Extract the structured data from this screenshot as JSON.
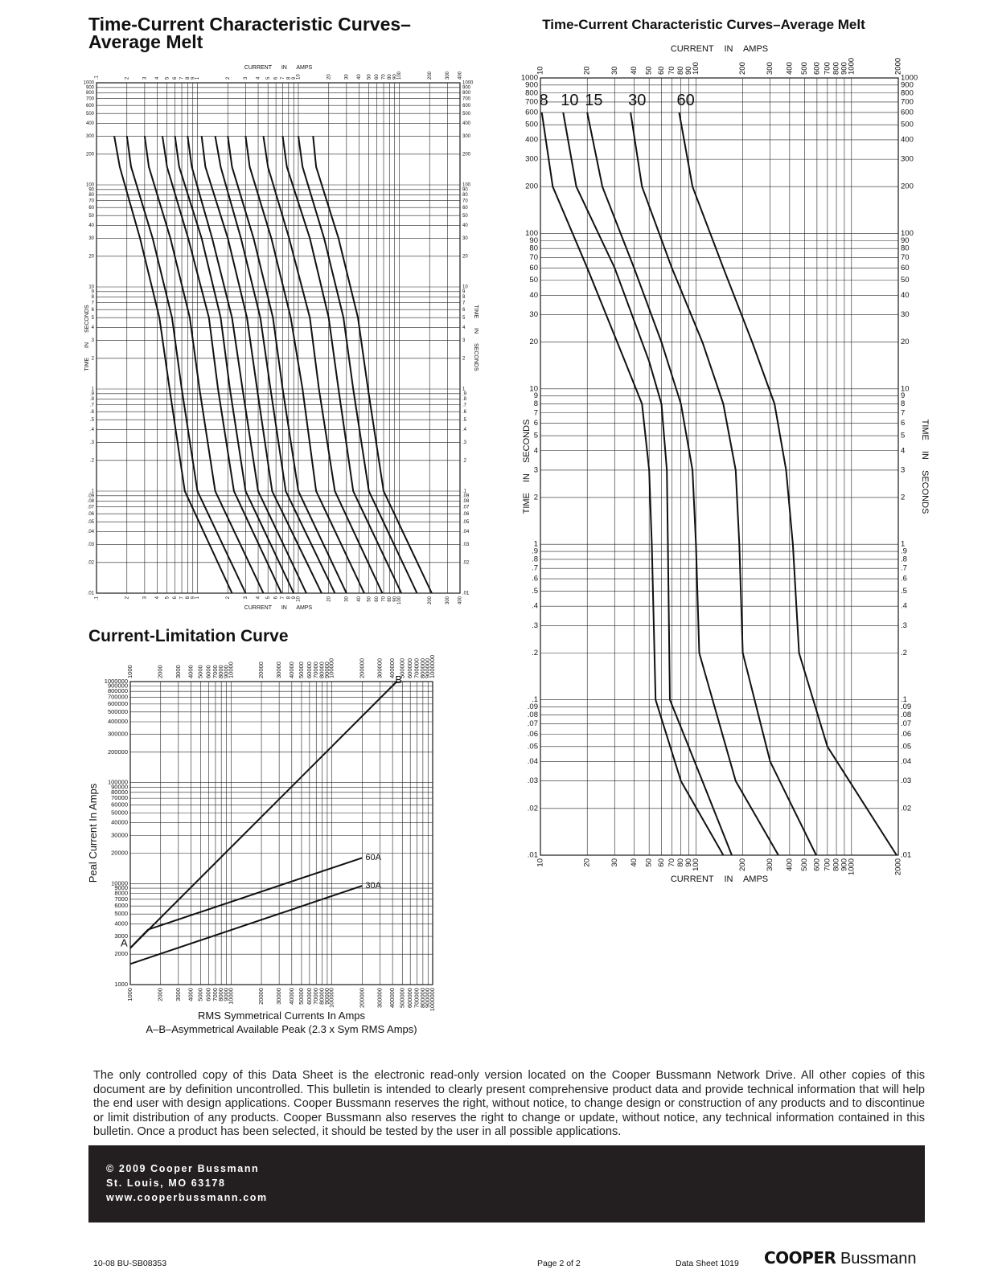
{
  "chart_data": [
    {
      "type": "line",
      "title": [
        "Time-Current Characteristic Curves–",
        "Average Melt"
      ],
      "xlabel": "CURRENT IN AMPS",
      "ylabel": "TIME IN SECONDS",
      "xscale": "log",
      "yscale": "log",
      "grid": true,
      "color": "#111111",
      "xlim": [
        0.1,
        400
      ],
      "ylim": [
        0.01,
        1000
      ],
      "xticks": [
        {
          "value": 0.1,
          "label": ".1"
        },
        {
          "value": 0.2,
          "label": "2"
        },
        {
          "value": 0.3,
          "label": "3"
        },
        {
          "value": 0.4,
          "label": "4"
        },
        {
          "value": 0.5,
          "label": "5"
        },
        {
          "value": 0.6,
          "label": "6"
        },
        {
          "value": 0.7,
          "label": "7"
        },
        {
          "value": 0.8,
          "label": "8"
        },
        {
          "value": 0.9,
          "label": "9"
        },
        1,
        2,
        3,
        4,
        5,
        6,
        7,
        8,
        9,
        10,
        20,
        30,
        40,
        50,
        60,
        70,
        80,
        90,
        100,
        200,
        300,
        400
      ],
      "yticks": [
        {
          "value": 0.01,
          "label": ".01"
        },
        {
          "value": 0.02,
          "label": ".02"
        },
        {
          "value": 0.03,
          "label": ".03"
        },
        {
          "value": 0.04,
          "label": ".04"
        },
        {
          "value": 0.05,
          "label": ".05"
        },
        {
          "value": 0.06,
          "label": ".06"
        },
        {
          "value": 0.07,
          "label": ".07"
        },
        {
          "value": 0.08,
          "label": ".08"
        },
        {
          "value": 0.09,
          "label": ".09"
        },
        {
          "value": 0.1,
          "label": ".1"
        },
        {
          "value": 0.2,
          "label": ".2"
        },
        {
          "value": 0.3,
          "label": ".3"
        },
        {
          "value": 0.4,
          "label": ".4"
        },
        {
          "value": 0.5,
          "label": ".5"
        },
        {
          "value": 0.6,
          "label": ".6"
        },
        {
          "value": 0.7,
          "label": ".7"
        },
        {
          "value": 0.8,
          "label": ".8"
        },
        {
          "value": 0.9,
          "label": ".9"
        },
        1,
        2,
        3,
        4,
        5,
        6,
        7,
        8,
        9,
        10,
        20,
        30,
        40,
        50,
        60,
        70,
        80,
        90,
        100,
        200,
        300,
        400,
        500,
        600,
        700,
        800,
        900,
        1000
      ],
      "series": [
        {
          "x": [
            0.15,
            0.17,
            0.27,
            0.42,
            0.53,
            0.75,
            2.2
          ],
          "values": [
            300,
            150,
            30,
            5,
            1,
            0.1,
            0.01
          ]
        },
        {
          "x": [
            0.2,
            0.22,
            0.36,
            0.56,
            0.7,
            1,
            3
          ],
          "values": [
            300,
            150,
            30,
            5,
            1,
            0.1,
            0.01
          ]
        },
        {
          "x": [
            0.3,
            0.33,
            0.54,
            0.84,
            1.05,
            1.5,
            4.5
          ],
          "values": [
            300,
            150,
            30,
            5,
            1,
            0.1,
            0.01
          ]
        },
        {
          "x": [
            0.45,
            0.5,
            0.81,
            1.3,
            1.6,
            2.3,
            6.8
          ],
          "values": [
            300,
            150,
            30,
            5,
            1,
            0.1,
            0.01
          ]
        },
        {
          "x": [
            0.6,
            0.66,
            1.1,
            1.7,
            2.1,
            3,
            9
          ],
          "values": [
            300,
            150,
            30,
            5,
            1,
            0.1,
            0.01
          ]
        },
        {
          "x": [
            0.8,
            0.88,
            1.4,
            2.2,
            2.8,
            4,
            12
          ],
          "values": [
            300,
            150,
            30,
            5,
            1,
            0.1,
            0.01
          ]
        },
        {
          "x": [
            1.1,
            1.2,
            2,
            3.1,
            3.9,
            5.5,
            17
          ],
          "values": [
            300,
            150,
            30,
            5,
            1,
            0.1,
            0.01
          ]
        },
        {
          "x": [
            1.5,
            1.7,
            2.7,
            4.2,
            5.3,
            7.5,
            23
          ],
          "values": [
            300,
            150,
            30,
            5,
            1,
            0.1,
            0.01
          ]
        },
        {
          "x": [
            2,
            2.2,
            3.6,
            5.6,
            7,
            10,
            30
          ],
          "values": [
            300,
            150,
            30,
            5,
            1,
            0.1,
            0.01
          ]
        },
        {
          "x": [
            3,
            3.3,
            5.4,
            8.4,
            11,
            15,
            45
          ],
          "values": [
            300,
            150,
            30,
            5,
            1,
            0.1,
            0.01
          ]
        },
        {
          "x": [
            4.5,
            5,
            8.1,
            13,
            16,
            23,
            68
          ],
          "values": [
            300,
            150,
            30,
            5,
            1,
            0.1,
            0.01
          ]
        },
        {
          "x": [
            7,
            7.7,
            13,
            20,
            25,
            35,
            105
          ],
          "values": [
            300,
            150,
            30,
            5,
            1,
            0.1,
            0.01
          ]
        },
        {
          "x": [
            10,
            11,
            18,
            28,
            35,
            50,
            150
          ],
          "values": [
            300,
            150,
            30,
            5,
            1,
            0.1,
            0.01
          ]
        },
        {
          "x": [
            14,
            15,
            25,
            39,
            49,
            70,
            210
          ],
          "values": [
            300,
            150,
            30,
            5,
            1,
            0.1,
            0.01
          ]
        }
      ]
    },
    {
      "type": "line",
      "title": [
        "Time-Current Characteristic Curves–Average Melt"
      ],
      "xlabel": "CURRENT IN AMPS",
      "ylabel": "TIME IN SECONDS",
      "xscale": "log",
      "yscale": "log",
      "grid": true,
      "color": "#111111",
      "xlim": [
        10,
        2000
      ],
      "ylim": [
        0.01,
        1000
      ],
      "xticks": [
        10,
        20,
        30,
        40,
        50,
        60,
        70,
        80,
        90,
        100,
        200,
        300,
        400,
        500,
        600,
        700,
        800,
        900,
        1000,
        2000
      ],
      "yticks": [
        {
          "value": 0.01,
          "label": ".01"
        },
        {
          "value": 0.02,
          "label": ".02"
        },
        {
          "value": 0.03,
          "label": ".03"
        },
        {
          "value": 0.04,
          "label": ".04"
        },
        {
          "value": 0.05,
          "label": ".05"
        },
        {
          "value": 0.06,
          "label": ".06"
        },
        {
          "value": 0.07,
          "label": ".07"
        },
        {
          "value": 0.08,
          "label": ".08"
        },
        {
          "value": 0.09,
          "label": ".09"
        },
        {
          "value": 0.1,
          "label": ".1"
        },
        {
          "value": 0.2,
          "label": ".2"
        },
        {
          "value": 0.3,
          "label": ".3"
        },
        {
          "value": 0.4,
          "label": ".4"
        },
        {
          "value": 0.5,
          "label": ".5"
        },
        {
          "value": 0.6,
          "label": ".6"
        },
        {
          "value": 0.7,
          "label": ".7"
        },
        {
          "value": 0.8,
          "label": ".8"
        },
        {
          "value": 0.9,
          "label": ".9"
        },
        1,
        2,
        3,
        4,
        5,
        6,
        7,
        8,
        9,
        10,
        20,
        30,
        40,
        50,
        60,
        70,
        80,
        90,
        100,
        200,
        300,
        400,
        500,
        600,
        700,
        800,
        900,
        1000
      ],
      "series": [
        {
          "name": "8",
          "x": [
            10.2,
            12,
            20,
            35,
            45,
            50,
            52,
            55,
            80,
            150
          ],
          "values": [
            600,
            200,
            60,
            15,
            8,
            3,
            1,
            0.1,
            0.03,
            0.01
          ]
        },
        {
          "name": "10",
          "x": [
            14,
            17,
            30,
            50,
            60,
            65,
            66,
            68,
            110,
            170
          ],
          "values": [
            600,
            200,
            60,
            15,
            8,
            3,
            1,
            0.1,
            0.03,
            0.01
          ]
        },
        {
          "name": "15",
          "x": [
            20,
            25,
            40,
            60,
            80,
            95,
            100,
            105,
            180,
            339
          ],
          "values": [
            600,
            200,
            60,
            20,
            8,
            3,
            1,
            0.2,
            0.03,
            0.01
          ]
        },
        {
          "name": "30",
          "x": [
            38,
            45,
            70,
            110,
            150,
            180,
            190,
            200,
            300,
            593
          ],
          "values": [
            600,
            200,
            60,
            20,
            8,
            3,
            1,
            0.2,
            0.04,
            0.01
          ]
        },
        {
          "name": "60",
          "x": [
            78,
            95,
            150,
            230,
            320,
            380,
            420,
            460,
            700,
            1950
          ],
          "values": [
            600,
            200,
            60,
            20,
            8,
            3,
            1,
            0.2,
            0.05,
            0.01
          ]
        }
      ]
    },
    {
      "type": "line",
      "title": [
        "Current-Limitation Curve"
      ],
      "xlabel": "RMS Symmetrical Currents In Amps",
      "note": "A–B–Asymmetrical Available Peak (2.3 x Sym RMS Amps)",
      "ylabel": "Peal Current In Amps",
      "xscale": "log",
      "yscale": "log",
      "grid": true,
      "color": "#111111",
      "xlim": [
        1000,
        1000000
      ],
      "ylim": [
        1000,
        1000000
      ],
      "xticks": [
        1000,
        2000,
        3000,
        4000,
        5000,
        6000,
        7000,
        8000,
        9000,
        10000,
        20000,
        30000,
        40000,
        50000,
        60000,
        70000,
        80000,
        90000,
        100000,
        200000,
        300000,
        400000,
        500000,
        600000,
        700000,
        800000,
        900000,
        1000000
      ],
      "yticks": [
        1000,
        2000,
        3000,
        4000,
        5000,
        6000,
        7000,
        8000,
        9000,
        10000,
        20000,
        30000,
        40000,
        50000,
        60000,
        70000,
        80000,
        90000,
        100000,
        200000,
        300000,
        400000,
        500000,
        600000,
        700000,
        800000,
        900000,
        1000000
      ],
      "series": [
        {
          "x": [
            1000,
            440000
          ],
          "values": [
            2300,
            1000000
          ]
        },
        {
          "name": "60A",
          "x": [
            1000,
            1500,
            200000
          ],
          "values": [
            2300,
            3500,
            18000
          ]
        },
        {
          "name": "30A",
          "x": [
            1000,
            200000
          ],
          "values": [
            1600,
            9500
          ]
        }
      ],
      "annotations": [
        {
          "text": "A",
          "x": 1000,
          "y": 2300
        },
        {
          "text": "B",
          "x": 440000,
          "y": 1000000
        }
      ]
    }
  ],
  "disclaimer": "The only controlled copy of this Data Sheet is the electronic read-only version located on the Cooper Bussmann Network Drive. All other copies of this document are by definition uncontrolled. This bulletin is intended to clearly present comprehensive product data and provide technical information that will help the end user with design applications. Cooper Bussmann reserves the right, without notice, to change design or construction of any products and to discontinue or limit distribution of any products. Cooper Bussmann also reserves the right to change or update, without notice, any technical information contained in this bulletin. Once a product has been selected, it should be tested by the user in all possible applications.",
  "footer": {
    "copyright": "© 2009 Cooper Bussmann",
    "address": "St. Louis, MO 63178",
    "website": "www.cooperbussmann.com",
    "doc_code": "10-08 BU-SB08353",
    "page": "Page 2 of 2",
    "sheet": "Data Sheet 1019",
    "brand": "COOPER",
    "brand_sub": "Bussmann"
  }
}
